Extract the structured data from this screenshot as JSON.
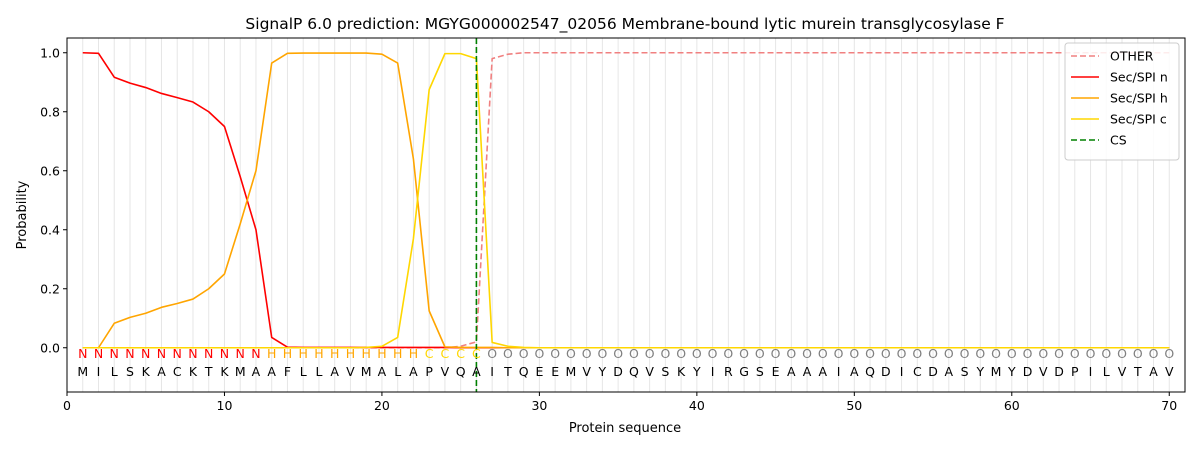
{
  "chart_data": {
    "type": "line",
    "title": "SignalP 6.0 prediction: MGYG000002547_02056 Membrane-bound lytic murein transglycosylase F",
    "xlabel": "Protein sequence",
    "ylabel": "Probability",
    "xlim": [
      0,
      71
    ],
    "ylim": [
      -0.15,
      1.05
    ],
    "xticks": [
      0,
      10,
      20,
      30,
      40,
      50,
      60,
      70
    ],
    "yticks": [
      0.0,
      0.2,
      0.4,
      0.6,
      0.8,
      1.0
    ],
    "x": [
      1,
      2,
      3,
      4,
      5,
      6,
      7,
      8,
      9,
      10,
      11,
      12,
      13,
      14,
      15,
      16,
      17,
      18,
      19,
      20,
      21,
      22,
      23,
      24,
      25,
      26,
      27,
      28,
      29,
      30,
      31,
      32,
      33,
      34,
      35,
      36,
      37,
      38,
      39,
      40,
      41,
      42,
      43,
      44,
      45,
      46,
      47,
      48,
      49,
      50,
      51,
      52,
      53,
      54,
      55,
      56,
      57,
      58,
      59,
      60,
      61,
      62,
      63,
      64,
      65,
      66,
      67,
      68,
      69,
      70
    ],
    "sequence": [
      "M",
      "I",
      "L",
      "S",
      "K",
      "A",
      "C",
      "K",
      "T",
      "K",
      "M",
      "A",
      "A",
      "F",
      "L",
      "L",
      "A",
      "V",
      "M",
      "A",
      "L",
      "A",
      "P",
      "V",
      "Q",
      "A",
      "I",
      "T",
      "Q",
      "E",
      "E",
      "M",
      "V",
      "Y",
      "D",
      "Q",
      "V",
      "S",
      "K",
      "Y",
      "I",
      "R",
      "G",
      "S",
      "E",
      "A",
      "A",
      "A",
      "I",
      "A",
      "Q",
      "D",
      "I",
      "C",
      "D",
      "A",
      "S",
      "Y",
      "M",
      "Y",
      "D",
      "V",
      "D",
      "P",
      "I",
      "L",
      "V",
      "T",
      "A",
      "V"
    ],
    "regions": [
      "N",
      "N",
      "N",
      "N",
      "N",
      "N",
      "N",
      "N",
      "N",
      "N",
      "N",
      "N",
      "H",
      "H",
      "H",
      "H",
      "H",
      "H",
      "H",
      "H",
      "H",
      "H",
      "C",
      "C",
      "C",
      "C",
      "O",
      "O",
      "O",
      "O",
      "O",
      "O",
      "O",
      "O",
      "O",
      "O",
      "O",
      "O",
      "O",
      "O",
      "O",
      "O",
      "O",
      "O",
      "O",
      "O",
      "O",
      "O",
      "O",
      "O",
      "O",
      "O",
      "O",
      "O",
      "O",
      "O",
      "O",
      "O",
      "O",
      "O",
      "O",
      "O",
      "O",
      "O",
      "O",
      "O",
      "O",
      "O",
      "O",
      "O"
    ],
    "region_colors": {
      "N": "#ff0000",
      "H": "#ffa500",
      "C": "#ffd700",
      "O": "#808080"
    },
    "series": [
      {
        "name": "OTHER",
        "color": "#f08080",
        "dashed": true,
        "values": [
          0,
          0,
          0,
          0,
          0,
          0,
          0,
          0,
          0,
          0,
          0,
          0,
          0,
          0,
          0,
          0,
          0,
          0,
          0,
          0,
          0,
          0,
          0,
          0,
          0.005,
          0.02,
          0.98,
          0.995,
          1,
          1,
          1,
          1,
          1,
          1,
          1,
          1,
          1,
          1,
          1,
          1,
          1,
          1,
          1,
          1,
          1,
          1,
          1,
          1,
          1,
          1,
          1,
          1,
          1,
          1,
          1,
          1,
          1,
          1,
          1,
          1,
          1,
          1,
          1,
          1,
          1,
          1,
          1,
          1,
          1,
          1
        ]
      },
      {
        "name": "Sec/SPI n",
        "color": "#ff0000",
        "dashed": false,
        "values": [
          1.0,
          0.998,
          0.917,
          0.897,
          0.882,
          0.862,
          0.848,
          0.833,
          0.8,
          0.75,
          0.58,
          0.4,
          0.035,
          0.002,
          0.001,
          0.001,
          0.001,
          0.001,
          0.001,
          0.001,
          0.001,
          0.001,
          0.001,
          0.001,
          0,
          0,
          0,
          0,
          0,
          0,
          0,
          0,
          0,
          0,
          0,
          0,
          0,
          0,
          0,
          0,
          0,
          0,
          0,
          0,
          0,
          0,
          0,
          0,
          0,
          0,
          0,
          0,
          0,
          0,
          0,
          0,
          0,
          0,
          0,
          0,
          0,
          0,
          0,
          0,
          0,
          0,
          0,
          0,
          0,
          0
        ]
      },
      {
        "name": "Sec/SPI h",
        "color": "#ffa500",
        "dashed": false,
        "values": [
          0,
          0,
          0.083,
          0.103,
          0.117,
          0.137,
          0.15,
          0.165,
          0.2,
          0.25,
          0.42,
          0.6,
          0.965,
          0.998,
          0.999,
          0.999,
          0.999,
          0.999,
          0.999,
          0.995,
          0.965,
          0.64,
          0.125,
          0.003,
          0.001,
          0.001,
          0.001,
          0,
          0,
          0,
          0,
          0,
          0,
          0,
          0,
          0,
          0,
          0,
          0,
          0,
          0,
          0,
          0,
          0,
          0,
          0,
          0,
          0,
          0,
          0,
          0,
          0,
          0,
          0,
          0,
          0,
          0,
          0,
          0,
          0,
          0,
          0,
          0,
          0,
          0,
          0,
          0,
          0,
          0,
          0
        ]
      },
      {
        "name": "Sec/SPI c",
        "color": "#ffd700",
        "dashed": false,
        "values": [
          0,
          0,
          0,
          0,
          0,
          0,
          0,
          0,
          0,
          0,
          0,
          0,
          0,
          0,
          0,
          0,
          0,
          0,
          0.001,
          0.005,
          0.035,
          0.37,
          0.875,
          0.997,
          0.997,
          0.98,
          0.018,
          0.005,
          0.001,
          0,
          0,
          0,
          0,
          0,
          0,
          0,
          0,
          0,
          0,
          0,
          0,
          0,
          0,
          0,
          0,
          0,
          0,
          0,
          0,
          0,
          0,
          0,
          0,
          0,
          0,
          0,
          0,
          0,
          0,
          0,
          0,
          0,
          0,
          0,
          0,
          0,
          0,
          0,
          0,
          0
        ]
      }
    ],
    "cs": {
      "name": "CS",
      "x": 26,
      "color": "#008000"
    },
    "legend": "top-right",
    "grid": "vertical"
  }
}
